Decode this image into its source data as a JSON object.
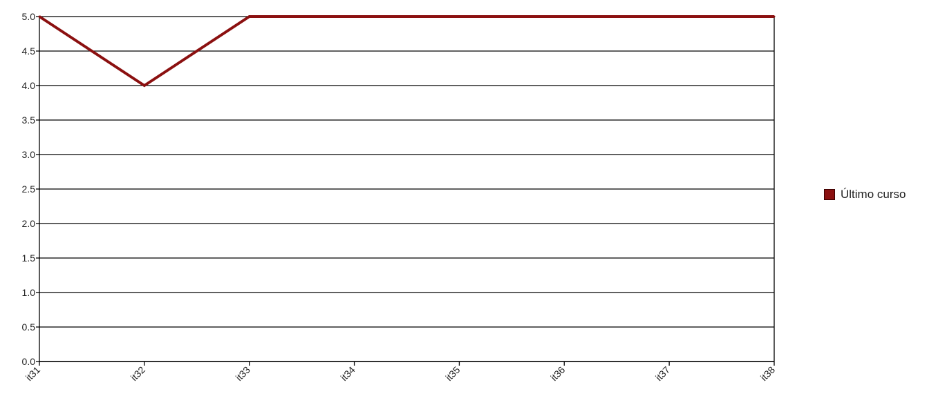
{
  "chart_data": {
    "type": "line",
    "categories": [
      "it31",
      "it32",
      "it33",
      "it34",
      "it35",
      "it36",
      "it37",
      "it38"
    ],
    "series": [
      {
        "name": "Último curso",
        "color": "#8b1010",
        "values": [
          5.0,
          4.0,
          5.0,
          5.0,
          5.0,
          5.0,
          5.0,
          5.0
        ]
      }
    ],
    "ylim": [
      0,
      5
    ],
    "yticks": [
      "0.0",
      "0.5",
      "1.0",
      "1.5",
      "2.0",
      "2.5",
      "3.0",
      "3.5",
      "4.0",
      "4.5",
      "5.0"
    ],
    "title": "",
    "xlabel": "",
    "ylabel": "",
    "grid": "horizontal",
    "legend": "right"
  }
}
